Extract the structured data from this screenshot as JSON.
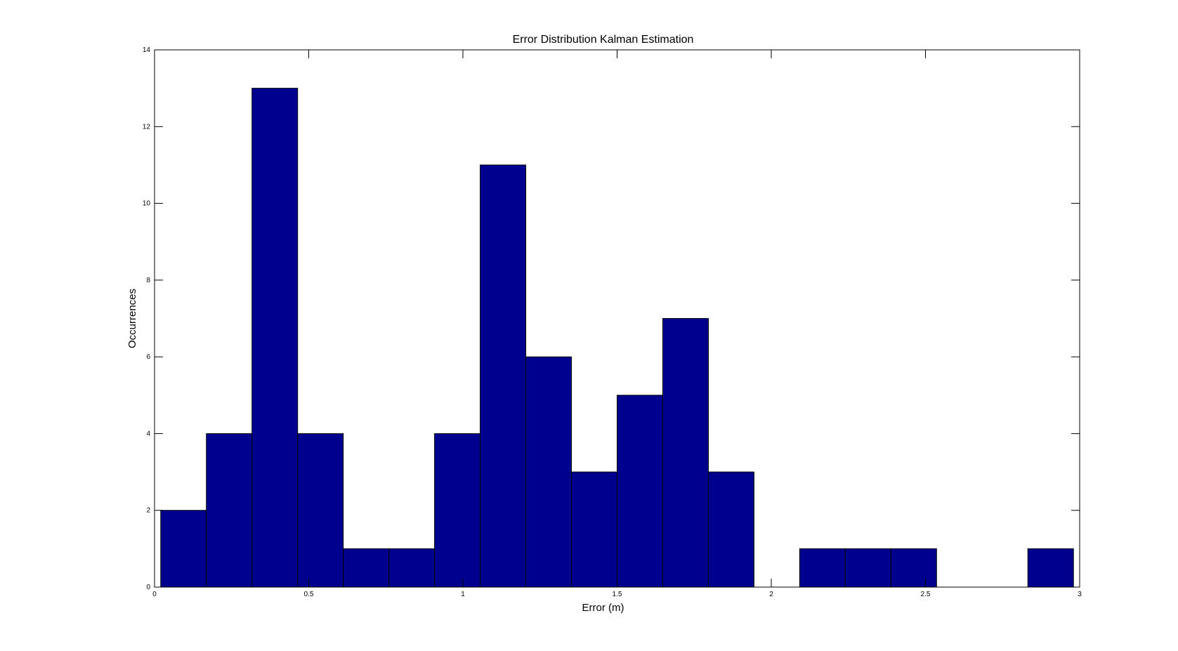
{
  "chart_data": {
    "type": "bar",
    "title": "Error Distribution Kalman Estimation",
    "xlabel": "Error (m)",
    "ylabel": "Occurrences",
    "xlim": [
      0,
      3
    ],
    "ylim": [
      0,
      14
    ],
    "xticks": [
      0,
      0.5,
      1,
      1.5,
      2,
      2.5,
      3
    ],
    "xtick_labels": [
      "0",
      "0.5",
      "1",
      "1.5",
      "2",
      "2.5",
      "3"
    ],
    "yticks": [
      0,
      2,
      4,
      6,
      8,
      10,
      12,
      14
    ],
    "ytick_labels": [
      "0",
      "2",
      "4",
      "6",
      "8",
      "10",
      "12",
      "14"
    ],
    "bin_edges": [
      0.02,
      0.168,
      0.316,
      0.464,
      0.612,
      0.76,
      0.908,
      1.056,
      1.204,
      1.352,
      1.5,
      1.648,
      1.796,
      1.944,
      2.092,
      2.24,
      2.388,
      2.536,
      2.684,
      2.832,
      2.98
    ],
    "counts": [
      2,
      4,
      13,
      4,
      1,
      1,
      4,
      11,
      6,
      3,
      5,
      7,
      3,
      0,
      1,
      1,
      1,
      0,
      0,
      1
    ],
    "bar_color": "#00008F",
    "edge_color": "#000000",
    "grid": false,
    "legend": "none"
  }
}
